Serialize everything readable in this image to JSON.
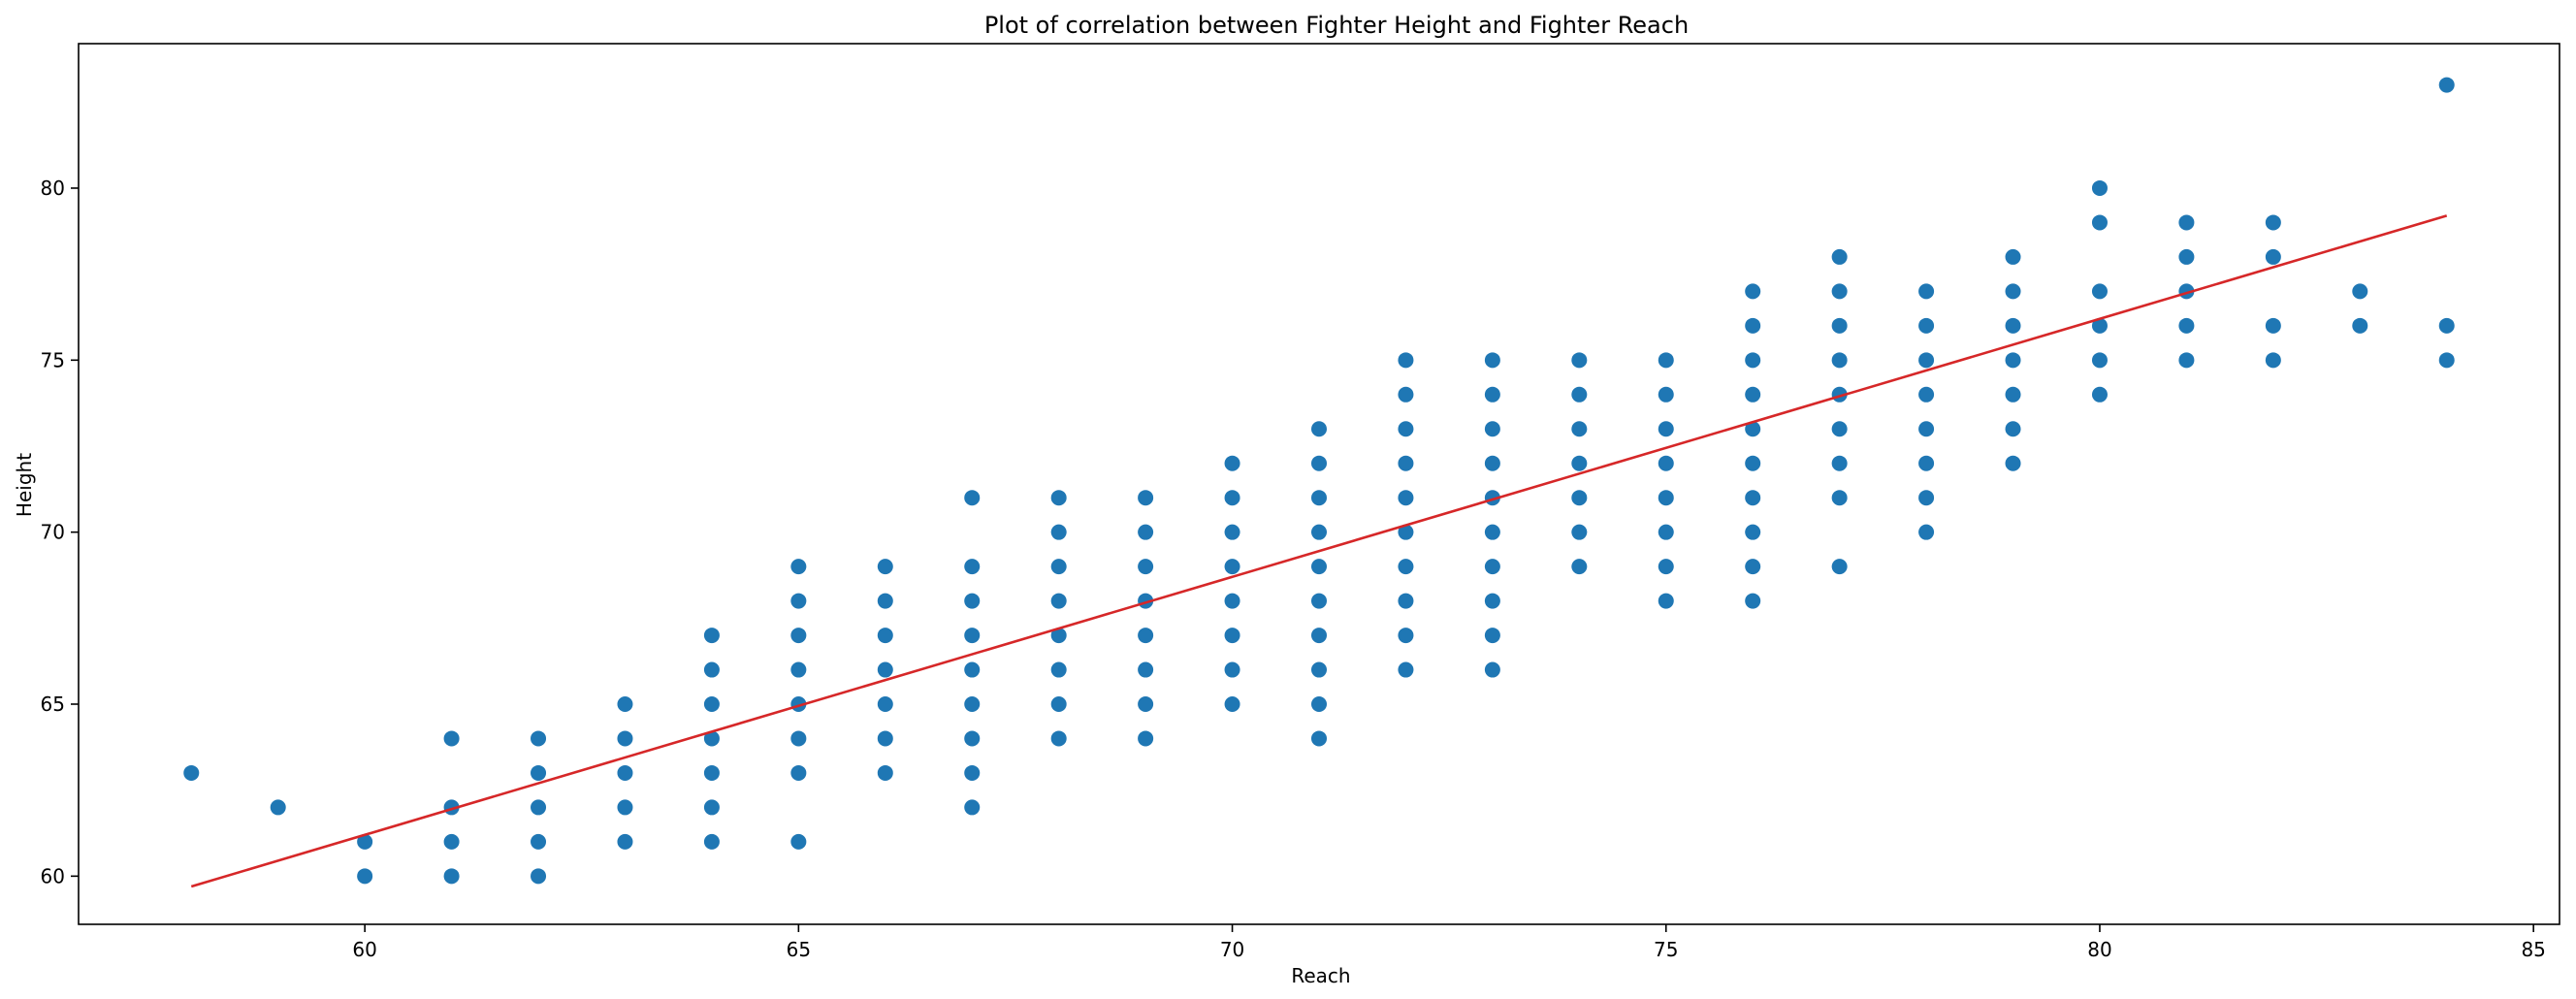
{
  "chart_data": {
    "type": "scatter",
    "title": "Plot of correlation between Fighter Height and Fighter Reach",
    "xlabel": "Reach",
    "ylabel": "Height",
    "xlim": [
      56.7,
      85.3
    ],
    "ylim": [
      58.6,
      84.2
    ],
    "xticks": [
      60,
      65,
      70,
      75,
      80,
      85
    ],
    "yticks": [
      60,
      65,
      70,
      75,
      80
    ],
    "grid": false,
    "colors": {
      "points": "#1f77b4",
      "fit_line": "#d62728"
    },
    "points": [
      [
        58,
        63
      ],
      [
        59,
        62
      ],
      [
        60,
        60
      ],
      [
        60,
        61
      ],
      [
        61,
        60
      ],
      [
        61,
        61
      ],
      [
        61,
        62
      ],
      [
        61,
        64
      ],
      [
        62,
        60
      ],
      [
        62,
        61
      ],
      [
        62,
        62
      ],
      [
        62,
        63
      ],
      [
        62,
        64
      ],
      [
        63,
        61
      ],
      [
        63,
        62
      ],
      [
        63,
        63
      ],
      [
        63,
        64
      ],
      [
        63,
        65
      ],
      [
        64,
        61
      ],
      [
        64,
        62
      ],
      [
        64,
        63
      ],
      [
        64,
        64
      ],
      [
        64,
        65
      ],
      [
        64,
        66
      ],
      [
        64,
        67
      ],
      [
        65,
        61
      ],
      [
        65,
        63
      ],
      [
        65,
        64
      ],
      [
        65,
        65
      ],
      [
        65,
        66
      ],
      [
        65,
        67
      ],
      [
        65,
        68
      ],
      [
        65,
        69
      ],
      [
        66,
        63
      ],
      [
        66,
        64
      ],
      [
        66,
        65
      ],
      [
        66,
        66
      ],
      [
        66,
        67
      ],
      [
        66,
        68
      ],
      [
        66,
        69
      ],
      [
        67,
        62
      ],
      [
        67,
        63
      ],
      [
        67,
        64
      ],
      [
        67,
        65
      ],
      [
        67,
        66
      ],
      [
        67,
        67
      ],
      [
        67,
        68
      ],
      [
        67,
        69
      ],
      [
        67,
        71
      ],
      [
        68,
        64
      ],
      [
        68,
        65
      ],
      [
        68,
        66
      ],
      [
        68,
        67
      ],
      [
        68,
        68
      ],
      [
        68,
        69
      ],
      [
        68,
        70
      ],
      [
        68,
        71
      ],
      [
        69,
        64
      ],
      [
        69,
        65
      ],
      [
        69,
        66
      ],
      [
        69,
        67
      ],
      [
        69,
        68
      ],
      [
        69,
        69
      ],
      [
        69,
        70
      ],
      [
        69,
        71
      ],
      [
        70,
        65
      ],
      [
        70,
        66
      ],
      [
        70,
        67
      ],
      [
        70,
        68
      ],
      [
        70,
        69
      ],
      [
        70,
        70
      ],
      [
        70,
        71
      ],
      [
        70,
        72
      ],
      [
        71,
        64
      ],
      [
        71,
        65
      ],
      [
        71,
        66
      ],
      [
        71,
        67
      ],
      [
        71,
        68
      ],
      [
        71,
        69
      ],
      [
        71,
        70
      ],
      [
        71,
        71
      ],
      [
        71,
        72
      ],
      [
        71,
        73
      ],
      [
        72,
        66
      ],
      [
        72,
        67
      ],
      [
        72,
        68
      ],
      [
        72,
        69
      ],
      [
        72,
        70
      ],
      [
        72,
        71
      ],
      [
        72,
        72
      ],
      [
        72,
        73
      ],
      [
        72,
        74
      ],
      [
        72,
        75
      ],
      [
        73,
        66
      ],
      [
        73,
        67
      ],
      [
        73,
        68
      ],
      [
        73,
        69
      ],
      [
        73,
        70
      ],
      [
        73,
        71
      ],
      [
        73,
        72
      ],
      [
        73,
        73
      ],
      [
        73,
        74
      ],
      [
        73,
        75
      ],
      [
        74,
        69
      ],
      [
        74,
        70
      ],
      [
        74,
        71
      ],
      [
        74,
        72
      ],
      [
        74,
        73
      ],
      [
        74,
        74
      ],
      [
        74,
        75
      ],
      [
        75,
        68
      ],
      [
        75,
        69
      ],
      [
        75,
        70
      ],
      [
        75,
        71
      ],
      [
        75,
        72
      ],
      [
        75,
        73
      ],
      [
        75,
        74
      ],
      [
        75,
        75
      ],
      [
        76,
        68
      ],
      [
        76,
        69
      ],
      [
        76,
        70
      ],
      [
        76,
        71
      ],
      [
        76,
        72
      ],
      [
        76,
        73
      ],
      [
        76,
        74
      ],
      [
        76,
        75
      ],
      [
        76,
        76
      ],
      [
        76,
        77
      ],
      [
        77,
        69
      ],
      [
        77,
        71
      ],
      [
        77,
        72
      ],
      [
        77,
        73
      ],
      [
        77,
        74
      ],
      [
        77,
        75
      ],
      [
        77,
        76
      ],
      [
        77,
        77
      ],
      [
        77,
        78
      ],
      [
        78,
        70
      ],
      [
        78,
        71
      ],
      [
        78,
        72
      ],
      [
        78,
        73
      ],
      [
        78,
        74
      ],
      [
        78,
        75
      ],
      [
        78,
        76
      ],
      [
        78,
        77
      ],
      [
        79,
        72
      ],
      [
        79,
        73
      ],
      [
        79,
        74
      ],
      [
        79,
        75
      ],
      [
        79,
        76
      ],
      [
        79,
        77
      ],
      [
        79,
        78
      ],
      [
        80,
        74
      ],
      [
        80,
        75
      ],
      [
        80,
        76
      ],
      [
        80,
        77
      ],
      [
        80,
        79
      ],
      [
        80,
        80
      ],
      [
        81,
        75
      ],
      [
        81,
        76
      ],
      [
        81,
        77
      ],
      [
        81,
        78
      ],
      [
        81,
        79
      ],
      [
        82,
        75
      ],
      [
        82,
        76
      ],
      [
        82,
        78
      ],
      [
        82,
        79
      ],
      [
        83,
        76
      ],
      [
        83,
        77
      ],
      [
        84,
        75
      ],
      [
        84,
        76
      ],
      [
        84,
        83
      ]
    ],
    "fit_line": [
      [
        58,
        59.7
      ],
      [
        84,
        79.2
      ]
    ]
  }
}
